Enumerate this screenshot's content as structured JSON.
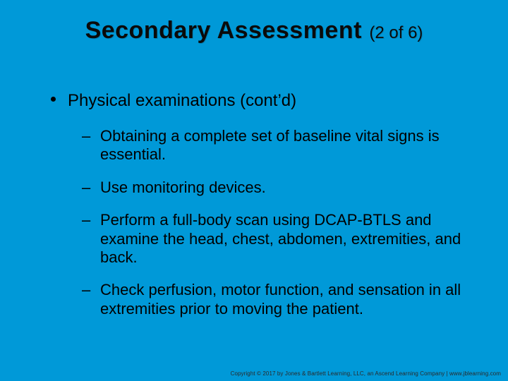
{
  "background_color": "#0099d8",
  "text_color": "#000000",
  "title": {
    "main": "Secondary Assessment",
    "sub": "(2 of 6)",
    "main_fontsize": 34,
    "sub_fontsize": 24,
    "weight": "bold"
  },
  "content": {
    "level1_fontsize": 24,
    "level2_fontsize": 22,
    "level1": {
      "bullet_style": "disc",
      "text": "Physical examinations (cont’d)"
    },
    "level2_items": [
      {
        "text": "Obtaining a complete set of baseline vital signs is essential."
      },
      {
        "text": "Use monitoring devices."
      },
      {
        "text": "Perform a full-body scan using DCAP-BTLS and examine the head, chest, abdomen, extremities, and back."
      },
      {
        "text": "Check perfusion, motor function, and sensation in all extremities prior to moving the patient."
      }
    ],
    "level2_marker": "–"
  },
  "footer": {
    "text": "Copyright © 2017 by Jones & Bartlett Learning, LLC, an Ascend Learning Company  |  www.jblearning.com",
    "fontsize": 8,
    "color": "#2a2a2a"
  }
}
